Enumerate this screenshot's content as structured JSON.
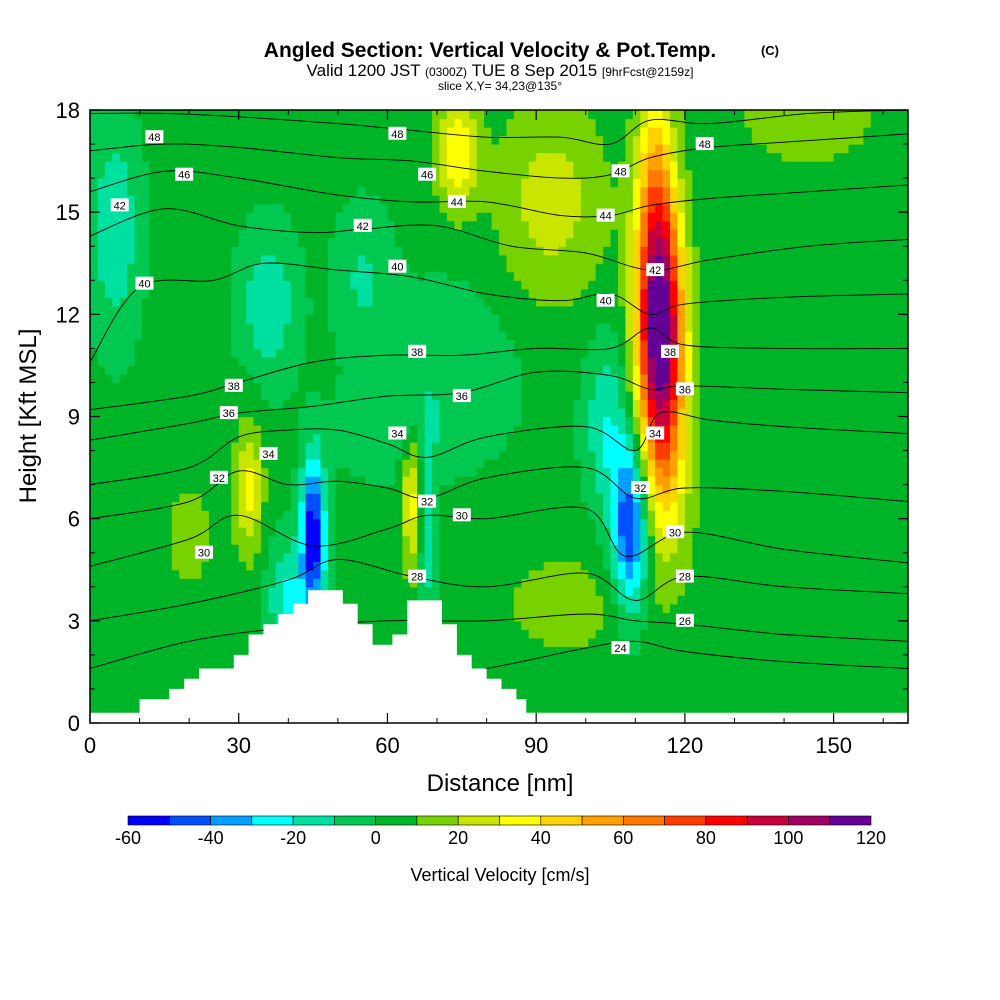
{
  "title": {
    "main": "Angled Section: Vertical Velocity & Pot.Temp.",
    "main_tag": "(C)",
    "line2_a": "Valid 1200 JST",
    "line2_b": "(0300Z)",
    "line2_c": "TUE 8 Sep 2015",
    "line2_d": "[9hrFcst@2159z]",
    "line3": "slice X,Y= 34,23@135°"
  },
  "colors": {
    "levels": [
      "#0000ff",
      "#0050ff",
      "#00a0ff",
      "#00ffff",
      "#00e0a0",
      "#00c850",
      "#00b428",
      "#78d200",
      "#c8e600",
      "#ffff00",
      "#ffd200",
      "#ffa000",
      "#ff7800",
      "#ff3c00",
      "#ff0000",
      "#c8003c",
      "#a00064",
      "#640096"
    ],
    "terrain": "#ffffff",
    "contour": "#000000"
  },
  "chart_data": {
    "type": "heatmap",
    "xlabel": "Distance [nm]",
    "ylabel": "Height [Kft MSL]",
    "xlim": [
      0,
      165
    ],
    "ylim": [
      0,
      18
    ],
    "xticks": [
      0,
      30,
      60,
      90,
      120,
      150
    ],
    "yticks": [
      0,
      3,
      6,
      9,
      12,
      15,
      18
    ],
    "colorbar": {
      "title": "Vertical Velocity [cm/s]",
      "ticks": [
        -60,
        -40,
        -20,
        0,
        20,
        40,
        60,
        80,
        100,
        120
      ],
      "bounds": [
        -60,
        120
      ],
      "step": 10
    },
    "terrain_profile": {
      "x": [
        0,
        10,
        10,
        16,
        16,
        19,
        19,
        22,
        22,
        29,
        29,
        32,
        32,
        35,
        35,
        38,
        38,
        41,
        41,
        44,
        44,
        47,
        47,
        51,
        51,
        54,
        54,
        57,
        57,
        61,
        61,
        64,
        64,
        71,
        71,
        74,
        74,
        77,
        77,
        80,
        80,
        83,
        83,
        86,
        86,
        88,
        88,
        165
      ],
      "y": [
        0.3,
        0.3,
        0.7,
        0.7,
        1.0,
        1.0,
        1.3,
        1.3,
        1.6,
        1.6,
        2.0,
        2.0,
        2.6,
        2.6,
        2.9,
        2.9,
        3.2,
        3.2,
        3.5,
        3.5,
        3.9,
        3.9,
        3.9,
        3.9,
        3.5,
        3.5,
        2.9,
        2.9,
        2.3,
        2.3,
        2.6,
        2.6,
        3.6,
        3.6,
        2.9,
        2.9,
        2.0,
        2.0,
        1.6,
        1.6,
        1.3,
        1.3,
        1.0,
        1.0,
        0.7,
        0.7,
        0.3,
        0.3
      ]
    },
    "vertical_velocity_features": [
      {
        "x": 115,
        "y": 11.5,
        "sx": 3.2,
        "sy": 2.6,
        "amp": 112
      },
      {
        "x": 114,
        "y": 15.5,
        "sx": 2.8,
        "sy": 2.5,
        "amp": 40
      },
      {
        "x": 116,
        "y": 7.5,
        "sx": 3.5,
        "sy": 2.2,
        "amp": 28
      },
      {
        "x": 109,
        "y": 5.8,
        "sx": 2.6,
        "sy": 1.8,
        "amp": -55
      },
      {
        "x": 104,
        "y": 8.8,
        "sx": 3.0,
        "sy": 1.8,
        "amp": -22
      },
      {
        "x": 45,
        "y": 5.5,
        "sx": 1.7,
        "sy": 1.6,
        "amp": -62
      },
      {
        "x": 40,
        "y": 3.6,
        "sx": 3.0,
        "sy": 1.2,
        "amp": -25
      },
      {
        "x": 68,
        "y": 5.6,
        "sx": 1.2,
        "sy": 1.8,
        "amp": -22
      },
      {
        "x": 65,
        "y": 6.6,
        "sx": 1.5,
        "sy": 1.5,
        "amp": 32
      },
      {
        "x": 32,
        "y": 6.9,
        "sx": 2.0,
        "sy": 1.4,
        "amp": 30
      },
      {
        "x": 74,
        "y": 16.8,
        "sx": 3.0,
        "sy": 1.2,
        "amp": 35
      },
      {
        "x": 93,
        "y": 15.3,
        "sx": 8.0,
        "sy": 2.2,
        "amp": 22
      },
      {
        "x": 145,
        "y": 17.8,
        "sx": 10.0,
        "sy": 1.0,
        "amp": 15
      },
      {
        "x": 20,
        "y": 5.5,
        "sx": 4.0,
        "sy": 1.2,
        "amp": 12
      },
      {
        "x": 5,
        "y": 14.5,
        "sx": 3.5,
        "sy": 2.2,
        "amp": -22
      },
      {
        "x": 36,
        "y": 12.3,
        "sx": 4.0,
        "sy": 1.5,
        "amp": -22
      },
      {
        "x": 55,
        "y": 13.0,
        "sx": 4.0,
        "sy": 1.5,
        "amp": -14
      },
      {
        "x": 74,
        "y": 10.6,
        "sx": 10.0,
        "sy": 1.8,
        "amp": -10
      },
      {
        "x": 62,
        "y": 8.6,
        "sx": 9.0,
        "sy": 1.0,
        "amp": -10
      },
      {
        "x": 96,
        "y": 3.5,
        "sx": 10.0,
        "sy": 1.2,
        "amp": 12
      },
      {
        "x": 135,
        "y": 8.5,
        "sx": 12.0,
        "sy": 4.0,
        "amp": 5
      }
    ],
    "potential_temperature_contours": [
      {
        "label": "24",
        "x": [
          0,
          20,
          40,
          60,
          80,
          100,
          110,
          120,
          140,
          165
        ],
        "y": [
          0.2,
          0.4,
          0.9,
          1.2,
          1.6,
          2.2,
          2.4,
          2.1,
          1.8,
          1.6
        ]
      },
      {
        "label": "26",
        "x": [
          0,
          20,
          40,
          60,
          80,
          100,
          110,
          120,
          140,
          165
        ],
        "y": [
          1.6,
          2.4,
          2.8,
          3.0,
          3.0,
          3.2,
          3.0,
          2.9,
          2.6,
          2.4
        ]
      },
      {
        "label": "28",
        "x": [
          0,
          20,
          40,
          50,
          65,
          80,
          100,
          110,
          120,
          140,
          165
        ],
        "y": [
          3.0,
          3.5,
          4.2,
          4.8,
          4.3,
          4.0,
          4.4,
          3.6,
          4.3,
          4.0,
          3.8
        ]
      },
      {
        "label": "30",
        "x": [
          0,
          20,
          30,
          45,
          60,
          68,
          80,
          100,
          108,
          120,
          140,
          165
        ],
        "y": [
          4.6,
          5.4,
          6.1,
          5.2,
          5.7,
          6.1,
          6.0,
          6.3,
          4.9,
          5.6,
          5.1,
          4.7
        ]
      },
      {
        "label": "32",
        "x": [
          0,
          20,
          30,
          40,
          50,
          60,
          68,
          80,
          100,
          110,
          120,
          140,
          165
        ],
        "y": [
          6.0,
          6.5,
          7.4,
          7.0,
          7.1,
          6.9,
          6.6,
          7.2,
          7.5,
          6.6,
          6.9,
          6.8,
          6.5
        ]
      },
      {
        "label": "34",
        "x": [
          0,
          20,
          30,
          40,
          50,
          60,
          68,
          80,
          100,
          110,
          115,
          125,
          140,
          165
        ],
        "y": [
          7.0,
          7.5,
          8.4,
          8.6,
          8.6,
          8.2,
          7.8,
          8.4,
          8.7,
          8.0,
          9.1,
          8.9,
          8.7,
          8.5
        ]
      },
      {
        "label": "36",
        "x": [
          0,
          20,
          30,
          45,
          60,
          75,
          90,
          105,
          113,
          120,
          140,
          165
        ],
        "y": [
          8.3,
          8.8,
          9.1,
          9.3,
          9.6,
          9.7,
          10.3,
          10.2,
          9.8,
          9.9,
          9.8,
          9.7
        ]
      },
      {
        "label": "38",
        "x": [
          0,
          20,
          30,
          45,
          60,
          75,
          90,
          105,
          113,
          120,
          140,
          165
        ],
        "y": [
          9.2,
          9.6,
          10.0,
          10.6,
          10.8,
          10.8,
          11.0,
          11.0,
          11.6,
          11.1,
          11.0,
          11.0
        ]
      },
      {
        "label": "40",
        "x": [
          0,
          10,
          25,
          35,
          50,
          65,
          80,
          95,
          105,
          113,
          120,
          140,
          165
        ],
        "y": [
          10.6,
          12.8,
          13.0,
          13.5,
          13.3,
          13.1,
          12.6,
          12.4,
          12.6,
          12.0,
          12.3,
          12.5,
          12.6
        ]
      },
      {
        "label": "42",
        "x": [
          0,
          15,
          30,
          45,
          55,
          70,
          85,
          100,
          113,
          125,
          145,
          165
        ],
        "y": [
          14.3,
          15.1,
          14.6,
          14.4,
          14.5,
          14.6,
          14.0,
          13.8,
          13.3,
          13.6,
          14.0,
          14.2
        ]
      },
      {
        "label": "44",
        "x": [
          0,
          15,
          30,
          50,
          65,
          80,
          95,
          105,
          113,
          125,
          145,
          165
        ],
        "y": [
          15.6,
          16.2,
          16.0,
          15.5,
          15.3,
          15.3,
          14.9,
          14.9,
          15.2,
          15.4,
          15.6,
          15.8
        ]
      },
      {
        "label": "46",
        "x": [
          0,
          15,
          30,
          50,
          65,
          80,
          95,
          105,
          113,
          125,
          145,
          165
        ],
        "y": [
          16.8,
          17.0,
          16.9,
          16.6,
          16.5,
          16.2,
          16.0,
          16.1,
          16.6,
          16.9,
          17.1,
          17.3
        ]
      },
      {
        "label": "48",
        "x": [
          0,
          15,
          30,
          50,
          65,
          80,
          95,
          105,
          113,
          125,
          145,
          165
        ],
        "y": [
          17.9,
          17.9,
          17.8,
          17.6,
          17.4,
          17.2,
          17.2,
          17.0,
          17.7,
          17.6,
          17.9,
          18.0
        ]
      }
    ],
    "contour_labels": [
      {
        "text": "48",
        "x": 13,
        "y": 17.2
      },
      {
        "text": "48",
        "x": 62,
        "y": 17.3
      },
      {
        "text": "48",
        "x": 124,
        "y": 17.0
      },
      {
        "text": "48",
        "x": 107,
        "y": 16.2
      },
      {
        "text": "46",
        "x": 19,
        "y": 16.1
      },
      {
        "text": "46",
        "x": 68,
        "y": 16.1
      },
      {
        "text": "44",
        "x": 74,
        "y": 15.3
      },
      {
        "text": "44",
        "x": 104,
        "y": 14.9
      },
      {
        "text": "42",
        "x": 6,
        "y": 15.2
      },
      {
        "text": "42",
        "x": 55,
        "y": 14.6
      },
      {
        "text": "42",
        "x": 114,
        "y": 13.3
      },
      {
        "text": "40",
        "x": 11,
        "y": 12.9
      },
      {
        "text": "40",
        "x": 62,
        "y": 13.4
      },
      {
        "text": "40",
        "x": 104,
        "y": 12.4
      },
      {
        "text": "38",
        "x": 66,
        "y": 10.9
      },
      {
        "text": "38",
        "x": 117,
        "y": 10.9
      },
      {
        "text": "38",
        "x": 29,
        "y": 9.9
      },
      {
        "text": "36",
        "x": 28,
        "y": 9.1
      },
      {
        "text": "36",
        "x": 75,
        "y": 9.6
      },
      {
        "text": "36",
        "x": 120,
        "y": 9.8
      },
      {
        "text": "34",
        "x": 36,
        "y": 7.9
      },
      {
        "text": "34",
        "x": 62,
        "y": 8.5
      },
      {
        "text": "34",
        "x": 114,
        "y": 8.5
      },
      {
        "text": "32",
        "x": 26,
        "y": 7.2
      },
      {
        "text": "32",
        "x": 68,
        "y": 6.5
      },
      {
        "text": "32",
        "x": 111,
        "y": 6.9
      },
      {
        "text": "30",
        "x": 75,
        "y": 6.1
      },
      {
        "text": "30",
        "x": 118,
        "y": 5.6
      },
      {
        "text": "30",
        "x": 23,
        "y": 5.0
      },
      {
        "text": "28",
        "x": 66,
        "y": 4.3
      },
      {
        "text": "28",
        "x": 120,
        "y": 4.3
      },
      {
        "text": "26",
        "x": 120,
        "y": 3.0
      },
      {
        "text": "24",
        "x": 107,
        "y": 2.2
      }
    ]
  }
}
